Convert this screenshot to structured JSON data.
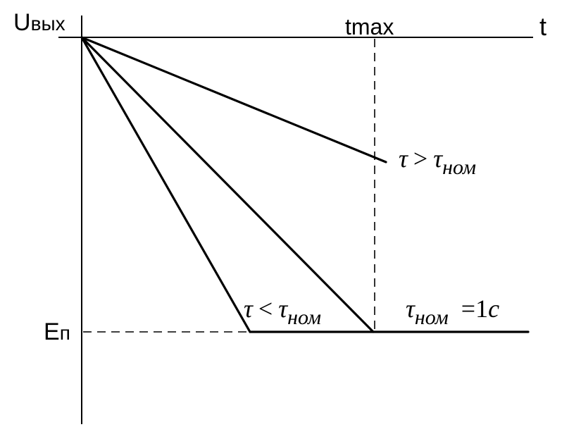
{
  "axes": {
    "y_label": {
      "main": "U",
      "sub": "вых"
    },
    "x_label": "t",
    "t_max": "tmax",
    "e_label": {
      "main": "E",
      "sub": "п"
    }
  },
  "curves": [
    {
      "symbol": "τ",
      "relation": ">",
      "ref": "τ",
      "ref_sub": "ном"
    },
    {
      "symbol": "τ",
      "relation": "<",
      "ref": "τ",
      "ref_sub": "ном"
    },
    {
      "symbol": "τ",
      "symbol_sub": "ном",
      "equals": "=1",
      "unit": "c"
    }
  ]
}
